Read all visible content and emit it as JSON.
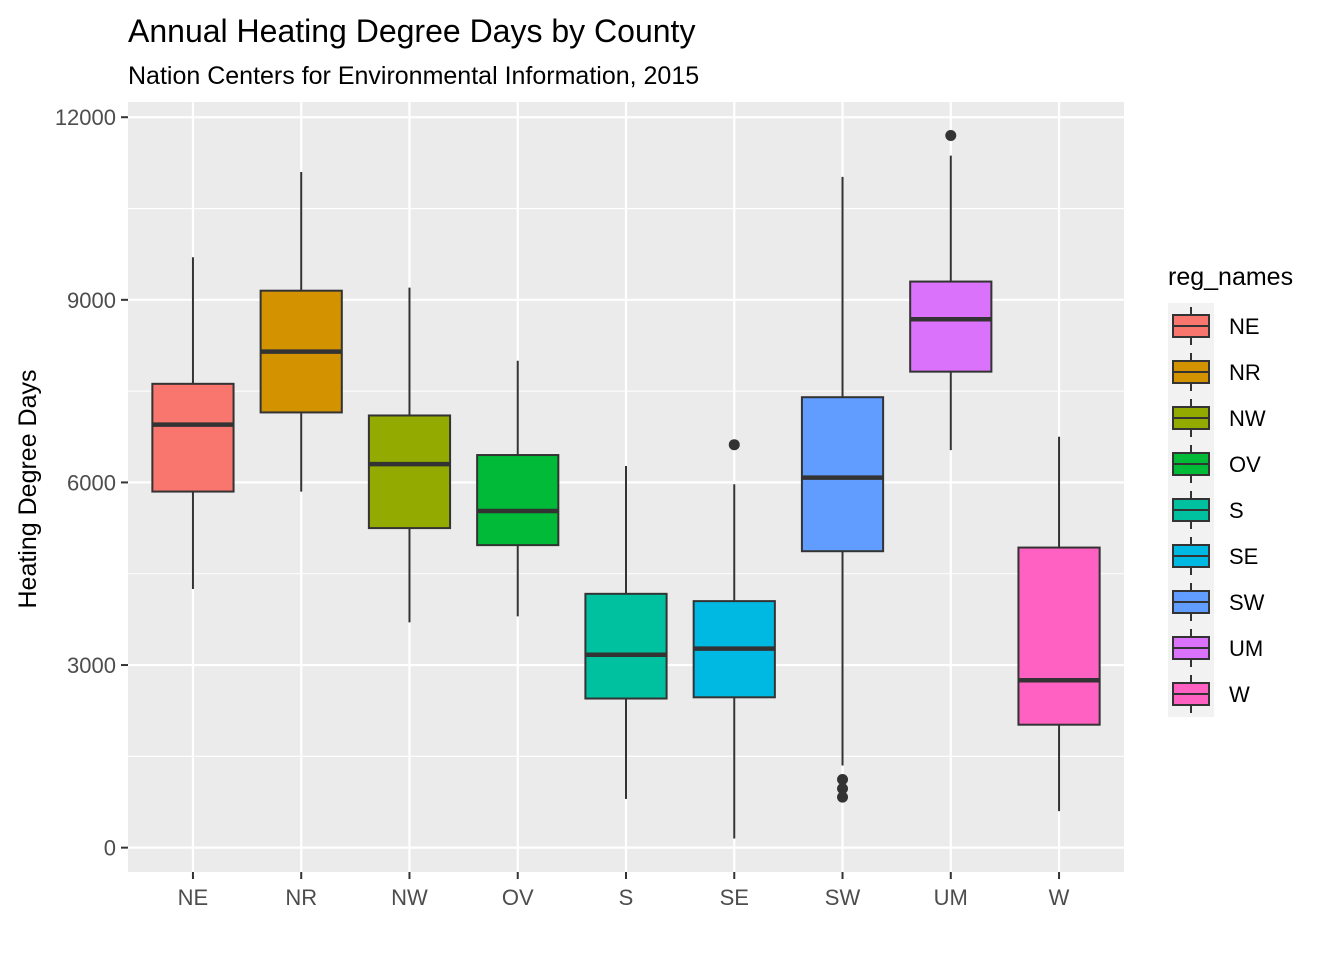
{
  "chart_data": {
    "type": "box",
    "title": "Annual Heating Degree Days by County",
    "subtitle": "Nation Centers for Environmental Information, 2015",
    "xlabel": "",
    "ylabel": "Heating Degree Days",
    "ylim": [
      -400,
      12250
    ],
    "yticks": [
      0,
      3000,
      6000,
      9000,
      12000
    ],
    "ytick_labels": [
      "0",
      "3000",
      "6000",
      "9000",
      "12000"
    ],
    "grid": true,
    "legend": {
      "title": "reg_names",
      "placement": "right"
    },
    "categories": [
      "NE",
      "NR",
      "NW",
      "OV",
      "S",
      "SE",
      "SW",
      "UM",
      "W"
    ],
    "boxes": [
      {
        "name": "NE",
        "color": "#F8766D",
        "whisker_low": 4250,
        "q1": 5850,
        "median": 6950,
        "q3": 7620,
        "whisker_high": 9700,
        "outliers": []
      },
      {
        "name": "NR",
        "color": "#D39200",
        "whisker_low": 5850,
        "q1": 7150,
        "median": 8150,
        "q3": 9150,
        "whisker_high": 11100,
        "outliers": []
      },
      {
        "name": "NW",
        "color": "#93AA00",
        "whisker_low": 3700,
        "q1": 5250,
        "median": 6300,
        "q3": 7100,
        "whisker_high": 9200,
        "outliers": []
      },
      {
        "name": "OV",
        "color": "#00BA38",
        "whisker_low": 3800,
        "q1": 4970,
        "median": 5530,
        "q3": 6450,
        "whisker_high": 8000,
        "outliers": []
      },
      {
        "name": "S",
        "color": "#00C19F",
        "whisker_low": 800,
        "q1": 2450,
        "median": 3170,
        "q3": 4170,
        "whisker_high": 6270,
        "outliers": []
      },
      {
        "name": "SE",
        "color": "#00B9E3",
        "whisker_low": 150,
        "q1": 2470,
        "median": 3270,
        "q3": 4050,
        "whisker_high": 5970,
        "outliers": [
          6620
        ]
      },
      {
        "name": "SW",
        "color": "#619CFF",
        "whisker_low": 1350,
        "q1": 4870,
        "median": 6080,
        "q3": 7400,
        "whisker_high": 11020,
        "outliers": [
          1120,
          970,
          830
        ]
      },
      {
        "name": "UM",
        "color": "#DB72FB",
        "whisker_low": 6530,
        "q1": 7820,
        "median": 8680,
        "q3": 9300,
        "whisker_high": 11370,
        "outliers": [
          11700
        ]
      },
      {
        "name": "W",
        "color": "#FF61C3",
        "whisker_low": 600,
        "q1": 2020,
        "median": 2750,
        "q3": 4930,
        "whisker_high": 6750,
        "outliers": []
      }
    ]
  }
}
